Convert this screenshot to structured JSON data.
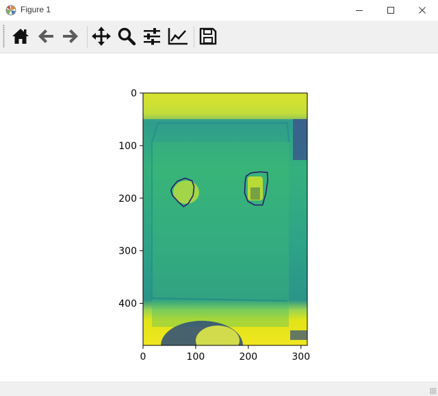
{
  "window": {
    "title": "Figure 1",
    "buttons": [
      "minimize-icon",
      "maximize-icon",
      "close-icon"
    ]
  },
  "toolbar": {
    "tools": [
      {
        "name": "home",
        "icon": "home-icon"
      },
      {
        "name": "back",
        "icon": "arrow-left-icon"
      },
      {
        "name": "forward",
        "icon": "arrow-right-icon"
      },
      {
        "name": "pan",
        "icon": "move-icon"
      },
      {
        "name": "zoom",
        "icon": "magnifier-icon"
      },
      {
        "name": "configure-subplots",
        "icon": "sliders-icon"
      },
      {
        "name": "edit-axis",
        "icon": "line-chart-icon"
      },
      {
        "name": "save",
        "icon": "floppy-disk-icon"
      }
    ]
  },
  "chart_data": {
    "type": "heatmap",
    "colormap": "viridis",
    "image_extent": {
      "x": [
        0,
        312
      ],
      "y": [
        0,
        480
      ]
    },
    "xlim": [
      0,
      312
    ],
    "ylim": [
      480,
      0
    ],
    "xticks": [
      0,
      100,
      200,
      300
    ],
    "yticks": [
      0,
      100,
      200,
      300,
      400
    ],
    "xtick_labels": [
      "0",
      "100",
      "200",
      "300"
    ],
    "ytick_labels": [
      "0",
      "100",
      "200",
      "300",
      "400"
    ],
    "contours": [
      {
        "color": "#2b1b6b",
        "points": [
          [
            55,
            180
          ],
          [
            65,
            168
          ],
          [
            80,
            162
          ],
          [
            93,
            167
          ],
          [
            97,
            178
          ],
          [
            95,
            195
          ],
          [
            86,
            210
          ],
          [
            77,
            216
          ],
          [
            68,
            208
          ],
          [
            56,
            195
          ],
          [
            53,
            186
          ]
        ]
      },
      {
        "color": "#2b1b6b",
        "points": [
          [
            196,
            158
          ],
          [
            205,
            152
          ],
          [
            222,
            150
          ],
          [
            236,
            151
          ],
          [
            237,
            165
          ],
          [
            233,
            192
          ],
          [
            227,
            213
          ],
          [
            212,
            213
          ],
          [
            199,
            206
          ],
          [
            193,
            190
          ],
          [
            194,
            168
          ]
        ]
      }
    ],
    "grid": false
  }
}
